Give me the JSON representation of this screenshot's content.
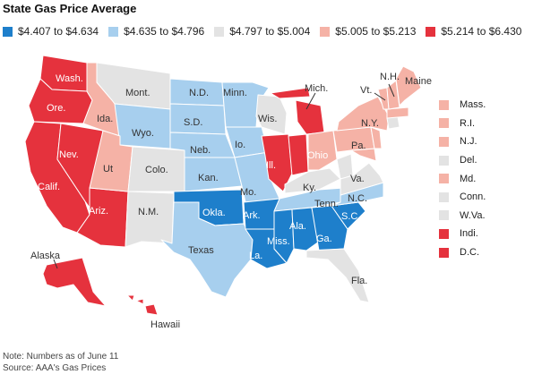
{
  "title": "State Gas Price Average",
  "colors": {
    "c1": "#1e7fcb",
    "c2": "#a7cfee",
    "c3": "#e3e3e3",
    "c4": "#f5b2a6",
    "c5": "#e5323d",
    "border": "#ffffff",
    "leader": "#333333"
  },
  "legend": [
    {
      "label": "$4.407 to $4.634",
      "color": "#1e7fcb"
    },
    {
      "label": "$4.635 to $4.796",
      "color": "#a7cfee"
    },
    {
      "label": "$4.797 to $5.004",
      "color": "#e3e3e3"
    },
    {
      "label": "$5.005 to $5.213",
      "color": "#f5b2a6"
    },
    {
      "label": "$5.214 to $6.430",
      "color": "#e5323d"
    }
  ],
  "states": {
    "wash": "Wash.",
    "ore": "Ore.",
    "calif": "Calif.",
    "nev": "Nev.",
    "ariz": "Ariz.",
    "ida": "Ida.",
    "mont": "Mont.",
    "wyo": "Wyo.",
    "ut": "Ut",
    "colo": "Colo.",
    "nm": "N.M.",
    "nd": "N.D.",
    "sd": "S.D.",
    "neb": "Neb.",
    "kan": "Kan.",
    "okla": "Okla.",
    "texas": "Texas",
    "minn": "Minn.",
    "io": "Io.",
    "mo": "Mo.",
    "ark": "Ark.",
    "la": "La.",
    "wis": "Wis.",
    "ill": "Ill.",
    "mich": "Mich.",
    "ohio": "Ohio",
    "ky": "Ky.",
    "tenn": "Tenn.",
    "miss": "Miss.",
    "ala": "Ala.",
    "ga": "Ga.",
    "fla": "Fla.",
    "sc": "S.C.",
    "nc": "N.C.",
    "va": "Va.",
    "pa": "Pa.",
    "ny": "N.Y.",
    "vt": "Vt.",
    "nh": "N.H.",
    "maine": "Maine",
    "alaska": "Alaska",
    "hawaii": "Hawaii"
  },
  "side_list": [
    {
      "label": "Mass.",
      "color": "#f5b2a6"
    },
    {
      "label": "R.I.",
      "color": "#f5b2a6"
    },
    {
      "label": "N.J.",
      "color": "#f5b2a6"
    },
    {
      "label": "Del.",
      "color": "#e3e3e3"
    },
    {
      "label": "Md.",
      "color": "#f5b2a6"
    },
    {
      "label": "Conn.",
      "color": "#e3e3e3"
    },
    {
      "label": "W.Va.",
      "color": "#e3e3e3"
    },
    {
      "label": "Indi.",
      "color": "#e5323d"
    },
    {
      "label": "D.C.",
      "color": "#e5323d"
    }
  ],
  "note": "Note: Numbers as of June 11",
  "source": "Source: AAA's Gas Prices"
}
